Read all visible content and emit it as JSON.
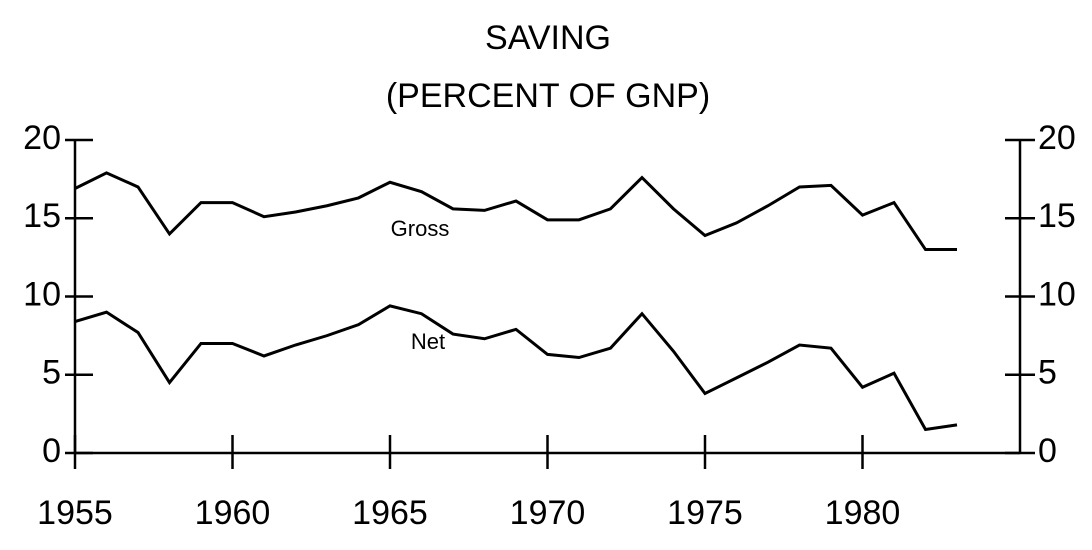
{
  "chart_data": {
    "type": "line",
    "title": "SAVING",
    "subtitle": "(PERCENT OF GNP)",
    "x": [
      1955,
      1956,
      1957,
      1958,
      1959,
      1960,
      1961,
      1962,
      1963,
      1964,
      1965,
      1966,
      1967,
      1968,
      1969,
      1970,
      1971,
      1972,
      1973,
      1974,
      1975,
      1976,
      1977,
      1978,
      1979,
      1980,
      1981,
      1982,
      1983
    ],
    "series": [
      {
        "name": "Gross",
        "color": "#000000",
        "values": [
          16.9,
          17.9,
          17.0,
          14.0,
          16.0,
          16.0,
          15.1,
          15.4,
          15.8,
          16.3,
          17.3,
          16.7,
          15.6,
          15.5,
          16.1,
          14.9,
          14.9,
          15.6,
          17.6,
          15.6,
          13.9,
          14.7,
          15.8,
          17.0,
          17.1,
          15.2,
          16.0,
          13.0,
          13.0
        ]
      },
      {
        "name": "Net",
        "color": "#000000",
        "values": [
          8.4,
          9.0,
          7.7,
          4.5,
          7.0,
          7.0,
          6.2,
          6.9,
          7.5,
          8.2,
          9.4,
          8.9,
          7.6,
          7.3,
          7.9,
          6.3,
          6.1,
          6.7,
          8.9,
          6.5,
          3.8,
          4.8,
          5.8,
          6.9,
          6.7,
          4.2,
          5.1,
          1.5,
          1.8
        ]
      }
    ],
    "xlim": [
      1955,
      1985
    ],
    "xticks": [
      1955,
      1960,
      1965,
      1970,
      1975,
      1980
    ],
    "ylim": [
      0,
      20
    ],
    "yticks": [
      0,
      5,
      10,
      15,
      20
    ],
    "y2lim": [
      0,
      20
    ],
    "y2ticks": [
      0,
      5,
      10,
      15,
      20
    ]
  }
}
